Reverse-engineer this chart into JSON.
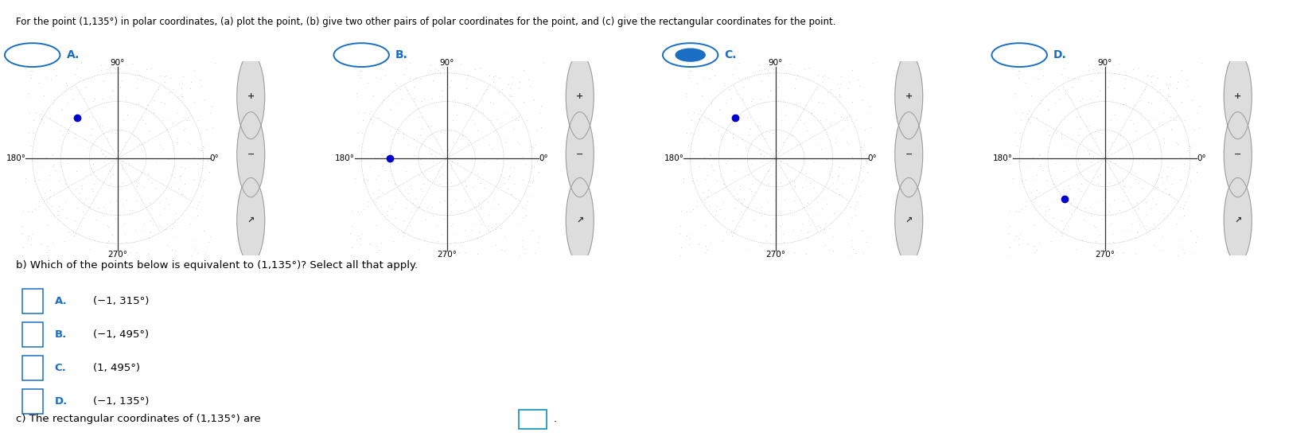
{
  "title": "For the point (1,135°) in polar coordinates, (a) plot the point, (b) give two other pairs of polar coordinates for the point, and (c) give the rectangular coordinates for the point.",
  "radio_labels": [
    "A.",
    "B.",
    "C.",
    "D."
  ],
  "radio_selected": 2,
  "polar_labels": {
    "top": "90°",
    "left": "180°",
    "right": "0°",
    "bottom": "270°"
  },
  "plots": [
    {
      "r": 1.0,
      "theta_deg": 135
    },
    {
      "r": 1.0,
      "theta_deg": 180
    },
    {
      "r": 1.0,
      "theta_deg": 135
    },
    {
      "r": 1.0,
      "theta_deg": 225
    }
  ],
  "dot_color": "#0000cc",
  "dot_size": 6,
  "axis_color": "#333333",
  "grid_color": "#999999",
  "text_color": "#000000",
  "label_color": "#1a6fc4",
  "bg_color": "#ffffff",
  "section_b_title": "b) Which of the points below is equivalent to (1,135°)? Select all that apply.",
  "section_b_options": [
    {
      "label": "A.",
      "text": "(−1, 315°)"
    },
    {
      "label": "B.",
      "text": "(−1, 495°)"
    },
    {
      "label": "C.",
      "text": "(1, 495°)"
    },
    {
      "label": "D.",
      "text": "(−1, 135°)"
    }
  ],
  "section_c_text": "c) The rectangular coordinates of (1,135°) are",
  "font_size_title": 8.5,
  "font_size_polar_labels": 7.5,
  "font_size_body": 9.5,
  "font_size_radio": 10,
  "zoom_icon_color": "#cccccc",
  "separator_color": "#bbbbbb"
}
